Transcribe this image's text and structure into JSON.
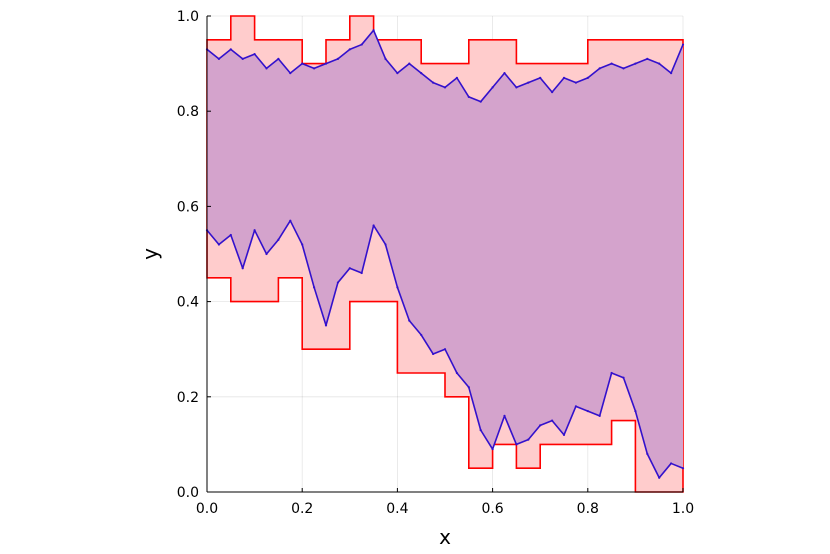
{
  "chart_data": {
    "type": "line",
    "title": "",
    "xlabel": "x",
    "ylabel": "y",
    "xlim": [
      0,
      1
    ],
    "ylim": [
      0,
      1
    ],
    "xticks": [
      "0.0",
      "0.2",
      "0.4",
      "0.6",
      "0.8",
      "1.0"
    ],
    "yticks": [
      "0.0",
      "0.2",
      "0.4",
      "0.6",
      "0.8",
      "1.0"
    ],
    "grid": true,
    "legend": "none",
    "colors": {
      "envelope_fill": "#ffcccc",
      "envelope_line": "#ff0000",
      "band_fill": "#d4a3cc",
      "path_line": "#3311cc"
    },
    "envelope_upper": {
      "x": [
        0,
        0.05,
        0.05,
        0.1,
        0.1,
        0.2,
        0.2,
        0.25,
        0.25,
        0.3,
        0.3,
        0.35,
        0.35,
        0.45,
        0.45,
        0.55,
        0.55,
        0.65,
        0.65,
        0.8,
        0.8,
        1.0
      ],
      "y": [
        0.95,
        0.95,
        1.0,
        1.0,
        0.95,
        0.95,
        0.9,
        0.9,
        0.95,
        0.95,
        1.0,
        1.0,
        0.95,
        0.95,
        0.9,
        0.9,
        0.95,
        0.95,
        0.9,
        0.9,
        0.95,
        0.95
      ]
    },
    "envelope_lower": {
      "x": [
        0,
        0.05,
        0.05,
        0.15,
        0.15,
        0.2,
        0.2,
        0.3,
        0.3,
        0.4,
        0.4,
        0.5,
        0.5,
        0.55,
        0.55,
        0.6,
        0.6,
        0.65,
        0.65,
        0.7,
        0.7,
        0.85,
        0.85,
        0.9,
        0.9,
        1.0
      ],
      "y": [
        0.45,
        0.45,
        0.4,
        0.4,
        0.45,
        0.45,
        0.3,
        0.3,
        0.4,
        0.4,
        0.25,
        0.25,
        0.2,
        0.2,
        0.05,
        0.05,
        0.1,
        0.1,
        0.05,
        0.05,
        0.1,
        0.1,
        0.15,
        0.15,
        0.0,
        0.0
      ]
    },
    "series": [
      {
        "x": [
          0,
          0.025,
          0.05,
          0.075,
          0.1,
          0.125,
          0.15,
          0.175,
          0.2,
          0.225,
          0.25,
          0.275,
          0.3,
          0.325,
          0.35,
          0.375,
          0.4,
          0.425,
          0.45,
          0.475,
          0.5,
          0.525,
          0.55,
          0.575,
          0.6,
          0.625,
          0.65,
          0.675,
          0.7,
          0.725,
          0.75,
          0.775,
          0.8,
          0.825,
          0.85,
          0.875,
          0.9,
          0.925,
          0.95,
          0.975,
          1.0
        ],
        "y": [
          0.93,
          0.91,
          0.93,
          0.91,
          0.92,
          0.89,
          0.91,
          0.88,
          0.9,
          0.89,
          0.9,
          0.91,
          0.93,
          0.94,
          0.97,
          0.91,
          0.88,
          0.9,
          0.88,
          0.86,
          0.85,
          0.87,
          0.83,
          0.82,
          0.85,
          0.88,
          0.85,
          0.86,
          0.87,
          0.84,
          0.87,
          0.86,
          0.87,
          0.89,
          0.9,
          0.89,
          0.9,
          0.91,
          0.9,
          0.88,
          0.94
        ]
      },
      {
        "x": [
          0,
          0.025,
          0.05,
          0.075,
          0.1,
          0.125,
          0.15,
          0.175,
          0.2,
          0.225,
          0.25,
          0.275,
          0.3,
          0.325,
          0.35,
          0.375,
          0.4,
          0.425,
          0.45,
          0.475,
          0.5,
          0.525,
          0.55,
          0.575,
          0.6,
          0.625,
          0.65,
          0.675,
          0.7,
          0.725,
          0.75,
          0.775,
          0.8,
          0.825,
          0.85,
          0.875,
          0.9,
          0.925,
          0.95,
          0.975,
          1.0
        ],
        "y": [
          0.55,
          0.52,
          0.54,
          0.47,
          0.55,
          0.5,
          0.53,
          0.57,
          0.52,
          0.43,
          0.35,
          0.44,
          0.47,
          0.46,
          0.56,
          0.52,
          0.43,
          0.36,
          0.33,
          0.29,
          0.3,
          0.25,
          0.22,
          0.13,
          0.09,
          0.16,
          0.1,
          0.11,
          0.14,
          0.15,
          0.12,
          0.18,
          0.17,
          0.16,
          0.25,
          0.24,
          0.17,
          0.08,
          0.03,
          0.06,
          0.05
        ]
      }
    ]
  }
}
